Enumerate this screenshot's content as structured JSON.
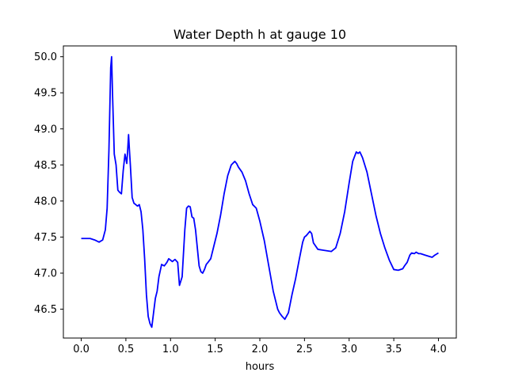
{
  "chart_data": {
    "type": "line",
    "title": "Water Depth h at gauge 10",
    "xlabel": "hours",
    "ylabel": "",
    "xlim": [
      -0.2,
      4.2
    ],
    "ylim": [
      46.1,
      50.15
    ],
    "xticks": [
      0.0,
      0.5,
      1.0,
      1.5,
      2.0,
      2.5,
      3.0,
      3.5,
      4.0
    ],
    "xtick_labels": [
      "0.0",
      "0.5",
      "1.0",
      "1.5",
      "2.0",
      "2.5",
      "3.0",
      "3.5",
      "4.0"
    ],
    "yticks": [
      46.5,
      47.0,
      47.5,
      48.0,
      48.5,
      49.0,
      49.5,
      50.0
    ],
    "ytick_labels": [
      "46.5",
      "47.0",
      "47.5",
      "48.0",
      "48.5",
      "49.0",
      "49.5",
      "50.0"
    ],
    "grid": false,
    "series": [
      {
        "color": "#0000ff",
        "x": [
          0.0,
          0.05,
          0.1,
          0.15,
          0.2,
          0.24,
          0.27,
          0.29,
          0.31,
          0.33,
          0.34,
          0.35,
          0.37,
          0.39,
          0.41,
          0.43,
          0.45,
          0.47,
          0.49,
          0.51,
          0.52,
          0.53,
          0.54,
          0.55,
          0.57,
          0.59,
          0.61,
          0.63,
          0.65,
          0.67,
          0.69,
          0.71,
          0.73,
          0.75,
          0.77,
          0.79,
          0.81,
          0.83,
          0.85,
          0.87,
          0.9,
          0.93,
          0.96,
          0.98,
          1.0,
          1.02,
          1.05,
          1.08,
          1.1,
          1.13,
          1.16,
          1.18,
          1.2,
          1.22,
          1.24,
          1.26,
          1.28,
          1.3,
          1.32,
          1.34,
          1.36,
          1.38,
          1.4,
          1.42,
          1.45,
          1.48,
          1.52,
          1.56,
          1.6,
          1.64,
          1.68,
          1.72,
          1.74,
          1.76,
          1.8,
          1.84,
          1.88,
          1.92,
          1.96,
          2.0,
          2.05,
          2.1,
          2.15,
          2.2,
          2.22,
          2.25,
          2.28,
          2.32,
          2.36,
          2.4,
          2.44,
          2.48,
          2.5,
          2.52,
          2.54,
          2.56,
          2.58,
          2.6,
          2.65,
          2.7,
          2.75,
          2.8,
          2.85,
          2.9,
          2.95,
          3.0,
          3.04,
          3.08,
          3.1,
          3.12,
          3.15,
          3.2,
          3.25,
          3.3,
          3.35,
          3.4,
          3.45,
          3.5,
          3.55,
          3.6,
          3.62,
          3.65,
          3.68,
          3.7,
          3.73,
          3.75,
          3.78,
          3.8,
          3.85,
          3.9,
          3.93,
          3.96,
          4.0
        ],
        "y": [
          47.48,
          47.48,
          47.48,
          47.46,
          47.43,
          47.46,
          47.6,
          47.9,
          48.7,
          49.85,
          50.0,
          49.5,
          48.65,
          48.5,
          48.15,
          48.12,
          48.1,
          48.42,
          48.65,
          48.52,
          48.7,
          48.92,
          48.7,
          48.5,
          48.05,
          47.97,
          47.95,
          47.93,
          47.95,
          47.85,
          47.6,
          47.2,
          46.7,
          46.4,
          46.3,
          46.25,
          46.45,
          46.65,
          46.75,
          46.95,
          47.12,
          47.1,
          47.15,
          47.2,
          47.18,
          47.16,
          47.19,
          47.15,
          46.83,
          46.95,
          47.6,
          47.9,
          47.93,
          47.92,
          47.78,
          47.76,
          47.6,
          47.35,
          47.1,
          47.02,
          47.0,
          47.05,
          47.12,
          47.15,
          47.2,
          47.35,
          47.55,
          47.8,
          48.1,
          48.35,
          48.5,
          48.55,
          48.52,
          48.47,
          48.4,
          48.28,
          48.1,
          47.95,
          47.9,
          47.72,
          47.45,
          47.1,
          46.75,
          46.5,
          46.45,
          46.4,
          46.36,
          46.45,
          46.7,
          46.92,
          47.18,
          47.43,
          47.5,
          47.52,
          47.55,
          47.58,
          47.55,
          47.42,
          47.33,
          47.32,
          47.31,
          47.3,
          47.35,
          47.55,
          47.85,
          48.25,
          48.55,
          48.68,
          48.66,
          48.68,
          48.6,
          48.4,
          48.1,
          47.8,
          47.55,
          47.35,
          47.18,
          47.05,
          47.04,
          47.06,
          47.1,
          47.15,
          47.25,
          47.28,
          47.27,
          47.29,
          47.27,
          47.27,
          47.25,
          47.23,
          47.22,
          47.25,
          47.28
        ]
      }
    ]
  }
}
